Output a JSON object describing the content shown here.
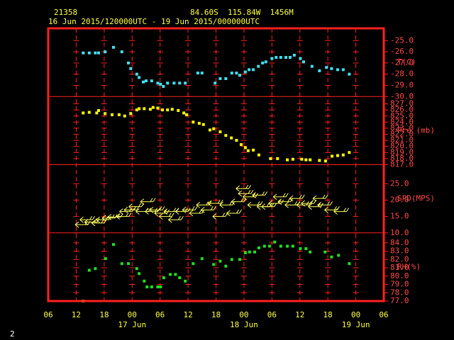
{
  "header": {
    "station": "21358",
    "location": "84.60S  115.84W  1456M",
    "period": "16 Jun 2015/120000UTC - 19 Jun 2015/000000UTC"
  },
  "page_number": "2",
  "xaxis": {
    "xlim": [
      0,
      72
    ],
    "xticks": [
      {
        "value": 0,
        "label": "06"
      },
      {
        "value": 6,
        "label": "12"
      },
      {
        "value": 12,
        "label": "18"
      },
      {
        "value": 18,
        "label": "00"
      },
      {
        "value": 24,
        "label": "06"
      },
      {
        "value": 30,
        "label": "12"
      },
      {
        "value": 36,
        "label": "18"
      },
      {
        "value": 42,
        "label": "00"
      },
      {
        "value": 48,
        "label": "06"
      },
      {
        "value": 54,
        "label": "12"
      },
      {
        "value": 60,
        "label": "18"
      },
      {
        "value": 66,
        "label": "00"
      },
      {
        "value": 72,
        "label": "06"
      }
    ],
    "day_labels": [
      "17 Jun",
      "18 Jun",
      "19 Jun"
    ]
  },
  "chart_data": [
    {
      "type": "scatter",
      "ylabel": "T(C)",
      "color": "#40e0f0",
      "ylim": [
        -30,
        -23.9
      ],
      "yticks": [
        {
          "value": -30,
          "label": "-30.0"
        },
        {
          "value": -29,
          "label": "-29.0"
        },
        {
          "value": -28,
          "label": "-28.0"
        },
        {
          "value": -27,
          "label": "-27.0"
        },
        {
          "value": -26,
          "label": "-26.0"
        },
        {
          "value": -25,
          "label": "-25.0"
        }
      ],
      "x": [
        7.5,
        8.8,
        10.1,
        10.8,
        12.2,
        14.0,
        15.8,
        17.2,
        17.7,
        19.0,
        19.5,
        20.4,
        21.0,
        22.2,
        23.5,
        24.1,
        24.7,
        25.6,
        27.0,
        28.2,
        29.4,
        32.1,
        33.0,
        35.8,
        36.9,
        38.1,
        39.4,
        40.4,
        41.1,
        42.3,
        43.1,
        44.0,
        45.1,
        46.0,
        46.7,
        48.0,
        48.9,
        49.9,
        51.0,
        51.9,
        52.8,
        54.1,
        54.8,
        56.6,
        58.2,
        59.7,
        60.8,
        62.1,
        63.3,
        64.6
      ],
      "values": [
        -26.1,
        -26.1,
        -26.1,
        -26.1,
        -26.0,
        -25.6,
        -26.0,
        -27.0,
        -27.5,
        -28.0,
        -28.3,
        -28.7,
        -28.6,
        -28.6,
        -28.8,
        -28.9,
        -29.1,
        -28.8,
        -28.8,
        -28.8,
        -28.8,
        -27.9,
        -27.9,
        -28.8,
        -28.4,
        -28.4,
        -27.9,
        -27.9,
        -28.1,
        -27.8,
        -27.6,
        -27.6,
        -27.3,
        -27.0,
        -26.9,
        -26.6,
        -26.5,
        -26.5,
        -26.5,
        -26.5,
        -26.3,
        -26.6,
        -26.9,
        -27.3,
        -27.7,
        -27.4,
        -27.5,
        -27.6,
        -27.6,
        -28.0
      ]
    },
    {
      "type": "scatter",
      "ylabel": "Pre (mb)",
      "color": "#ffff00",
      "ylim": [
        817,
        828.2
      ],
      "yticks": [
        {
          "value": 817,
          "label": "817.0"
        },
        {
          "value": 818,
          "label": "818.0"
        },
        {
          "value": 819,
          "label": "819.0"
        },
        {
          "value": 820,
          "label": "820.0"
        },
        {
          "value": 821,
          "label": "821.0"
        },
        {
          "value": 822,
          "label": "822.0"
        },
        {
          "value": 823,
          "label": "823.0"
        },
        {
          "value": 824,
          "label": "824.0"
        },
        {
          "value": 825,
          "label": "825.0"
        },
        {
          "value": 826,
          "label": "826.0"
        },
        {
          "value": 827,
          "label": "827.0"
        }
      ],
      "x": [
        7.5,
        8.8,
        10.4,
        10.8,
        12.2,
        13.7,
        15.2,
        16.4,
        17.7,
        19.0,
        19.5,
        20.6,
        21.9,
        22.5,
        23.5,
        24.5,
        25.6,
        26.6,
        27.9,
        29.1,
        29.7,
        31.1,
        32.4,
        33.3,
        34.7,
        35.5,
        36.9,
        38.1,
        39.3,
        40.4,
        41.4,
        42.3,
        42.9,
        44.0,
        45.2,
        47.7,
        49.2,
        51.3,
        52.5,
        54.4,
        55.3,
        56.2,
        58.2,
        59.5,
        60.9,
        62.1,
        63.3,
        64.6
      ],
      "values": [
        825.5,
        825.6,
        825.5,
        825.9,
        825.4,
        825.2,
        825.2,
        825.0,
        825.4,
        826.0,
        826.2,
        826.2,
        826.1,
        826.4,
        826.3,
        826.0,
        826.0,
        826.1,
        825.9,
        825.5,
        825.2,
        824.0,
        823.8,
        823.6,
        822.7,
        822.9,
        822.4,
        821.8,
        821.4,
        821.0,
        820.3,
        819.8,
        819.3,
        819.4,
        818.6,
        818.0,
        818.0,
        817.8,
        817.9,
        817.9,
        817.8,
        817.8,
        817.7,
        817.6,
        818.4,
        818.5,
        818.6,
        819.0
      ]
    },
    {
      "type": "barbs",
      "ylabel": "SPD(MPS)",
      "color": "#ffff60",
      "ylim": [
        10,
        30.8
      ],
      "yticks": [
        {
          "value": 10,
          "label": "10.0"
        },
        {
          "value": 15,
          "label": "15.0"
        },
        {
          "value": 20,
          "label": "20.0"
        },
        {
          "value": 25,
          "label": "25.0"
        }
      ],
      "x": [
        7.0,
        8.0,
        9.0,
        10.5,
        11.5,
        12.8,
        14.0,
        15.8,
        16.5,
        17.5,
        18.5,
        20.0,
        21.0,
        22.0,
        23.0,
        24.0,
        25.0,
        26.0,
        27.0,
        28.5,
        30.0,
        31.5,
        33.0,
        34.0,
        35.5,
        36.5,
        38.0,
        39.5,
        40.5,
        41.5,
        42.0,
        43.0,
        44.0,
        45.0,
        46.0,
        47.0,
        48.5,
        49.5,
        50.5,
        52.0,
        53.0,
        54.5,
        55.5,
        57.0,
        58.0,
        59.0,
        60.5,
        62.5
      ],
      "values": [
        12.5,
        14.0,
        13.3,
        13.0,
        14.0,
        14.5,
        14.8,
        15.0,
        16.5,
        17.0,
        18.0,
        16.5,
        19.5,
        16.5,
        17.0,
        16.0,
        15.0,
        16.5,
        14.0,
        16.5,
        17.0,
        16.0,
        18.5,
        17.0,
        19.0,
        15.0,
        18.5,
        16.0,
        19.5,
        23.5,
        22.0,
        21.0,
        18.5,
        21.5,
        18.0,
        18.0,
        19.0,
        21.0,
        19.5,
        18.5,
        20.5,
        18.5,
        19.0,
        18.0,
        20.5,
        18.5,
        17.0,
        16.5
      ]
    },
    {
      "type": "scatter",
      "ylabel": "RH(%)",
      "color": "#20e020",
      "ylim": [
        77,
        85.2
      ],
      "yticks": [
        {
          "value": 77,
          "label": "77.0"
        },
        {
          "value": 78,
          "label": "78.0"
        },
        {
          "value": 79,
          "label": "79.0"
        },
        {
          "value": 80,
          "label": "80.0"
        },
        {
          "value": 81,
          "label": "81.0"
        },
        {
          "value": 82,
          "label": "82.0"
        },
        {
          "value": 83,
          "label": "83.0"
        },
        {
          "value": 84,
          "label": "84.0"
        }
      ],
      "x": [
        7.5,
        8.8,
        10.1,
        12.3,
        14.0,
        15.8,
        17.2,
        19.0,
        19.5,
        20.6,
        21.2,
        22.2,
        23.5,
        24.1,
        24.8,
        26.2,
        27.3,
        28.2,
        29.4,
        31.1,
        33.0,
        35.5,
        36.9,
        38.1,
        39.4,
        41.1,
        42.3,
        43.2,
        44.3,
        45.2,
        46.4,
        47.5,
        48.6,
        49.9,
        51.3,
        52.5,
        54.1,
        55.3,
        56.2,
        59.4,
        60.8,
        62.3,
        64.6
      ],
      "values": [
        77.0,
        80.7,
        80.9,
        82.1,
        83.8,
        81.5,
        81.5,
        80.9,
        80.3,
        79.4,
        78.7,
        78.7,
        78.7,
        78.7,
        79.8,
        80.2,
        80.2,
        79.8,
        79.4,
        81.5,
        82.1,
        81.4,
        81.8,
        81.2,
        82.0,
        82.0,
        82.8,
        82.9,
        82.9,
        83.4,
        83.6,
        83.6,
        84.1,
        83.6,
        83.6,
        83.6,
        83.3,
        83.3,
        82.9,
        82.9,
        82.3,
        82.5,
        81.5
      ]
    }
  ]
}
